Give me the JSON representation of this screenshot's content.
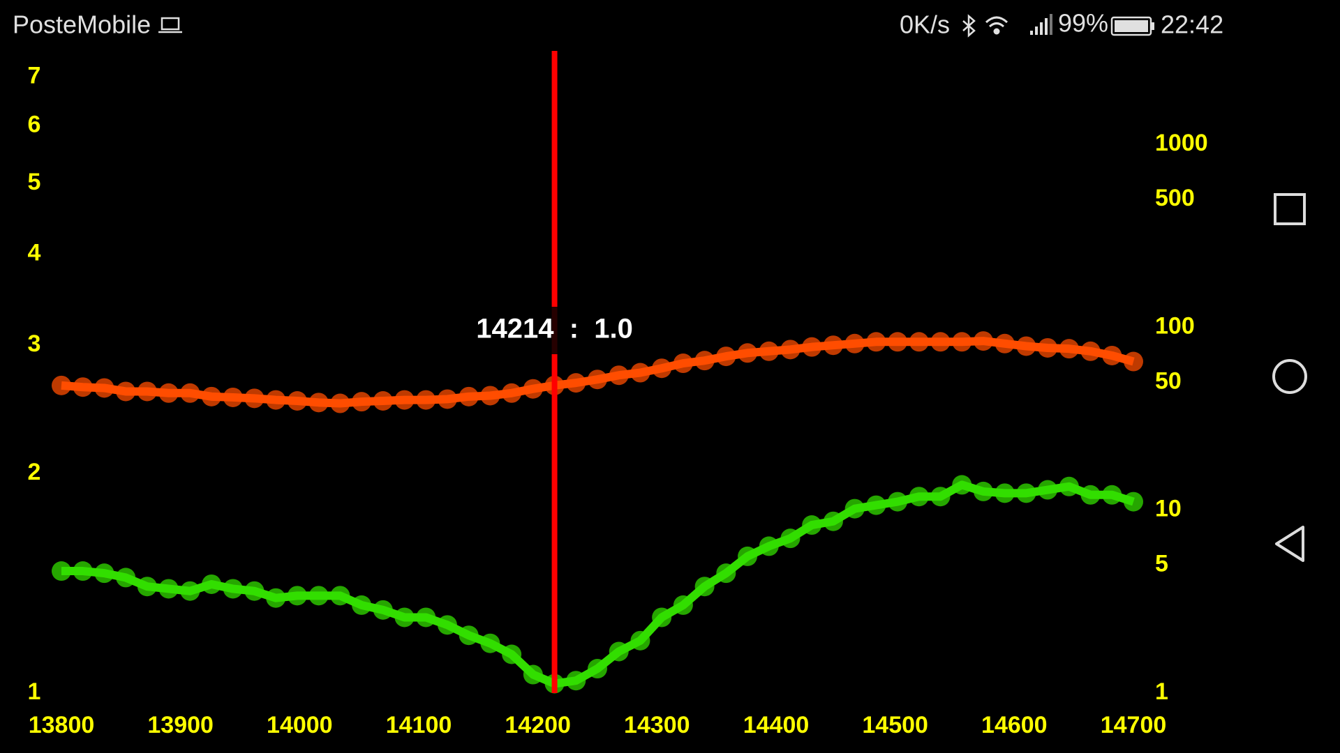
{
  "status_bar": {
    "carrier": "PosteMobile",
    "speed": "0K/s",
    "battery": "99%",
    "time": "22:42"
  },
  "chart_data": {
    "type": "line",
    "x": [
      13800,
      13818,
      13836,
      13854,
      13872,
      13890,
      13908,
      13926,
      13944,
      13962,
      13980,
      13998,
      14016,
      14034,
      14052,
      14070,
      14088,
      14106,
      14124,
      14142,
      14160,
      14178,
      14196,
      14214,
      14232,
      14250,
      14268,
      14286,
      14304,
      14322,
      14340,
      14358,
      14376,
      14394,
      14412,
      14430,
      14448,
      14466,
      14484,
      14502,
      14520,
      14538,
      14556,
      14574,
      14592,
      14610,
      14628,
      14646,
      14664,
      14682,
      14700
    ],
    "series": [
      {
        "color": "#33dd00",
        "values": [
          1.47,
          1.47,
          1.46,
          1.44,
          1.4,
          1.39,
          1.38,
          1.41,
          1.39,
          1.38,
          1.35,
          1.36,
          1.36,
          1.36,
          1.32,
          1.3,
          1.27,
          1.27,
          1.24,
          1.2,
          1.17,
          1.13,
          1.06,
          1.03,
          1.04,
          1.08,
          1.14,
          1.18,
          1.27,
          1.32,
          1.4,
          1.46,
          1.54,
          1.59,
          1.63,
          1.7,
          1.72,
          1.79,
          1.81,
          1.83,
          1.86,
          1.86,
          1.93,
          1.89,
          1.88,
          1.88,
          1.9,
          1.92,
          1.87,
          1.87,
          1.83
        ]
      },
      {
        "color": "#ff4d00",
        "axis": "y2",
        "values": [
          48.1,
          47.1,
          46.6,
          44.6,
          44.6,
          43.7,
          43.7,
          41.8,
          41.4,
          40.9,
          40.1,
          39.6,
          38.8,
          38.4,
          39.2,
          39.6,
          40.1,
          40.1,
          40.5,
          41.8,
          42.3,
          43.7,
          46.1,
          48.1,
          49.7,
          51.9,
          54.7,
          56.5,
          59.7,
          63.6,
          65.8,
          69.4,
          72.4,
          74.0,
          75.6,
          78.1,
          79.8,
          81.5,
          83.3,
          83.3,
          83.3,
          83.3,
          83.3,
          84.2,
          81.5,
          78.9,
          77.2,
          76.4,
          74.0,
          70.1,
          65.0
        ]
      }
    ],
    "xlim": [
      13800,
      14700
    ],
    "xticks": [
      13800,
      13900,
      14000,
      14100,
      14200,
      14300,
      14400,
      14500,
      14600,
      14700
    ],
    "ylim": [
      1,
      7.6
    ],
    "ylog": true,
    "yticks": [
      1,
      2,
      3,
      4,
      5,
      6,
      7
    ],
    "y2lim": [
      1,
      3250
    ],
    "y2log": true,
    "y2ticks": [
      1,
      5,
      10,
      50,
      100,
      500,
      1000
    ],
    "tick_color": "#ffff00",
    "cursor": {
      "x": 14214,
      "color": "#ff0000",
      "label": "14214  :  1.0"
    }
  }
}
